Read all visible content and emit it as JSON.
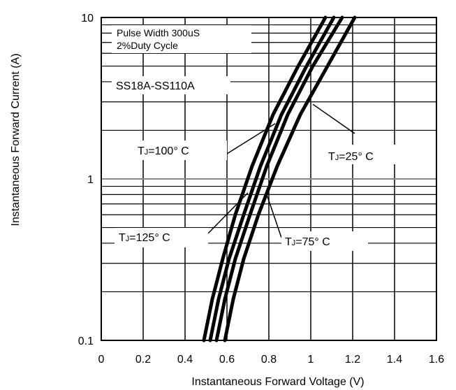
{
  "chart_data": {
    "type": "line",
    "xlabel": "Instantaneous Forward Voltage (V)",
    "ylabel": "Instantaneous Forward Current (A)",
    "xlim": [
      0,
      1.6
    ],
    "ylim": [
      0.1,
      10
    ],
    "y_scale": "log",
    "grid": true,
    "x_ticks": [
      "0",
      "0.2",
      "0.4",
      "0.6",
      "0.8",
      "1",
      "1.2",
      "1.4",
      "1.6"
    ],
    "y_ticks": [
      "0.1",
      "1",
      "10"
    ],
    "notes": [
      "Pulse Width 300uS",
      "2%Duty Cycle"
    ],
    "part_label": "SS18A-SS110A",
    "series": [
      {
        "name": "TJ=125° C",
        "x": [
          0.49,
          0.53,
          0.58,
          0.64,
          0.72,
          0.82,
          0.94,
          1.07
        ],
        "y": [
          0.1,
          0.18,
          0.32,
          0.6,
          1.2,
          2.5,
          5.0,
          10
        ]
      },
      {
        "name": "TJ=100° C",
        "x": [
          0.52,
          0.56,
          0.61,
          0.68,
          0.76,
          0.86,
          0.98,
          1.11
        ],
        "y": [
          0.1,
          0.18,
          0.32,
          0.6,
          1.2,
          2.5,
          5.0,
          10
        ]
      },
      {
        "name": "TJ=75° C",
        "x": [
          0.55,
          0.59,
          0.64,
          0.71,
          0.79,
          0.89,
          1.01,
          1.15
        ],
        "y": [
          0.1,
          0.18,
          0.32,
          0.6,
          1.2,
          2.5,
          5.0,
          10
        ]
      },
      {
        "name": "TJ=25° C",
        "x": [
          0.59,
          0.63,
          0.68,
          0.75,
          0.84,
          0.95,
          1.08,
          1.21
        ],
        "y": [
          0.1,
          0.18,
          0.32,
          0.6,
          1.2,
          2.5,
          5.0,
          10
        ]
      }
    ],
    "annotations": [
      {
        "series": 1,
        "sub": "J",
        "prefix": "T",
        "suffix": "=100° C",
        "at": [
          0.83,
          2.2
        ]
      },
      {
        "series": 3,
        "sub": "J",
        "prefix": "T",
        "suffix": "=25° C",
        "at": [
          1.01,
          2.9
        ]
      },
      {
        "series": 0,
        "sub": "J",
        "prefix": "T",
        "suffix": "=125° C",
        "at": [
          0.7,
          0.82
        ]
      },
      {
        "series": 2,
        "sub": "J",
        "prefix": "T",
        "suffix": "=75° C",
        "at": [
          0.79,
          0.8
        ]
      }
    ]
  }
}
